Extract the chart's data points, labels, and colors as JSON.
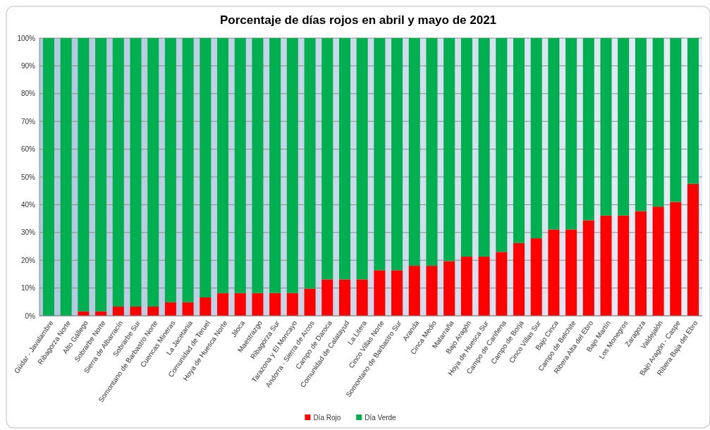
{
  "chart_data": {
    "type": "bar",
    "stacked": true,
    "title": "Porcentaje de días rojos en abril y mayo de 2021",
    "categories": [
      "Gúdar - Javalambre",
      "Ribagorza Norte",
      "Alto Gállego",
      "Sobrarbe Norte",
      "Sierra de Albarracín",
      "Sobrarbe Sur",
      "Somontano de Barbastro Norte",
      "Cuencas Mineras",
      "La Jacetania",
      "Comunidad de Teruel",
      "Hoya de Huesca Norte",
      "Jiloca",
      "Maestrazgo",
      "Ribagorza Sur",
      "Tarazona y El Moncayo",
      "Andorra - Sierra de Arcos",
      "Campo de Daroca",
      "Comunidad de Calatayud",
      "La Litera",
      "Cinco Villas Norte",
      "Somontano de Barbastro Sur",
      "Aranda",
      "Cinca Medio",
      "Matarraña",
      "Bajo Aragón",
      "Hoya de Huesca Sur",
      "Campo de Cariñena",
      "Campo de Borja",
      "Cinco Villas Sur",
      "Bajo Cinca",
      "Campo de Belchite",
      "Ribera Alta del Ebro",
      "Bajo Martín",
      "Los Monegros",
      "Zaragoza",
      "Valdejalón",
      "Bajo Aragón - Caspe",
      "Ribera Baja del Ebro"
    ],
    "series": [
      {
        "name": "Día Rojo",
        "color": "#ff0000",
        "values": [
          0,
          0,
          1.6,
          1.6,
          3.3,
          3.3,
          3.3,
          4.9,
          4.9,
          6.6,
          8.2,
          8.2,
          8.2,
          8.2,
          8.2,
          9.8,
          13.1,
          13.1,
          13.1,
          16.4,
          16.4,
          18.0,
          18.0,
          19.7,
          21.3,
          21.3,
          23.0,
          26.2,
          27.9,
          31.1,
          31.1,
          34.4,
          36.1,
          36.1,
          37.7,
          39.3,
          41.0,
          47.5
        ]
      },
      {
        "name": "Día Verde",
        "color": "#00b050",
        "values": [
          100,
          100,
          98.4,
          98.4,
          96.7,
          96.7,
          96.7,
          95.1,
          95.1,
          93.4,
          91.8,
          91.8,
          91.8,
          91.8,
          91.8,
          90.2,
          86.9,
          86.9,
          86.9,
          83.6,
          83.6,
          82.0,
          82.0,
          80.3,
          78.7,
          78.7,
          77.0,
          73.8,
          72.1,
          68.9,
          68.9,
          65.6,
          63.9,
          63.9,
          62.3,
          60.7,
          59.0,
          52.5
        ]
      }
    ],
    "ylim": [
      0,
      100
    ],
    "yticks": [
      {
        "value": 0,
        "label": "0%"
      },
      {
        "value": 10,
        "label": "10%"
      },
      {
        "value": 20,
        "label": "20%"
      },
      {
        "value": 30,
        "label": "30%"
      },
      {
        "value": 40,
        "label": "40%"
      },
      {
        "value": 50,
        "label": "50%"
      },
      {
        "value": 60,
        "label": "60%"
      },
      {
        "value": 70,
        "label": "70%"
      },
      {
        "value": 80,
        "label": "80%"
      },
      {
        "value": 90,
        "label": "90%"
      },
      {
        "value": 100,
        "label": "100%"
      }
    ],
    "grid": "y",
    "legend": "bottom"
  }
}
